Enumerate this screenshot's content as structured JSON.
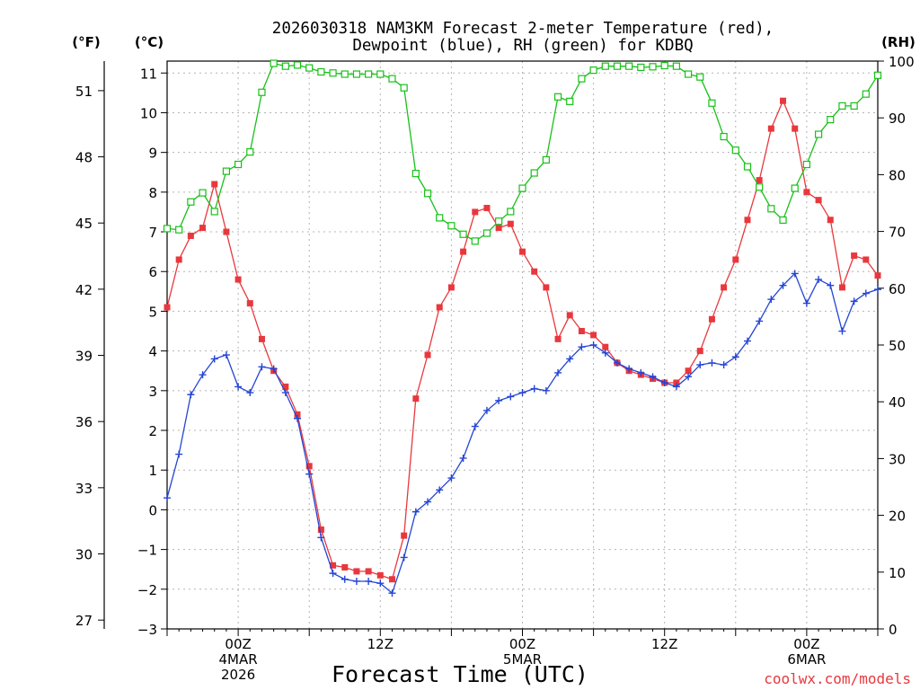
{
  "chart_data": {
    "type": "line",
    "title": [
      "2026030318 NAM3KM Forecast 2-meter Temperature (red),",
      "Dewpoint (blue), RH (green) for KDBQ"
    ],
    "xlabel": "Forecast Time (UTC)",
    "credit": "coolwx.com/models",
    "units": {
      "fahrenheit": "(°F)",
      "celsius": "(°C)",
      "rh": "(RH)"
    },
    "x_range_hours": [
      0,
      60
    ],
    "x_ticks": [
      {
        "hour": 6,
        "lines": [
          "00Z",
          "4MAR",
          "2026"
        ]
      },
      {
        "hour": 18,
        "lines": [
          "12Z"
        ]
      },
      {
        "hour": 30,
        "lines": [
          "00Z",
          "5MAR"
        ]
      },
      {
        "hour": 42,
        "lines": [
          "12Z"
        ]
      },
      {
        "hour": 54,
        "lines": [
          "00Z",
          "6MAR"
        ]
      }
    ],
    "y_left_celsius": {
      "range": [
        -3,
        11.3
      ],
      "ticks": [
        -3,
        -2,
        -1,
        0,
        1,
        2,
        3,
        4,
        5,
        6,
        7,
        8,
        9,
        10,
        11
      ]
    },
    "y_fahrenheit": {
      "ticks": [
        27,
        30,
        33,
        36,
        39,
        42,
        45,
        48,
        51
      ]
    },
    "y_right_rh": {
      "range": [
        0,
        100
      ],
      "ticks": [
        0,
        10,
        20,
        30,
        40,
        50,
        60,
        70,
        80,
        90,
        100
      ]
    },
    "series": [
      {
        "name": "Temperature",
        "unit": "C",
        "color": "#e8383d",
        "marker": "filled-square",
        "values": [
          5.1,
          6.3,
          6.9,
          7.1,
          8.2,
          7.0,
          5.8,
          5.2,
          4.3,
          3.5,
          3.1,
          2.4,
          1.1,
          -0.5,
          -1.4,
          -1.45,
          -1.55,
          -1.55,
          -1.65,
          -1.75,
          -0.65,
          2.8,
          3.9,
          5.1,
          5.6,
          6.5,
          7.5,
          7.6,
          7.1,
          7.2,
          6.5,
          6.0,
          5.6,
          4.3,
          4.9,
          4.5,
          4.4,
          4.1,
          3.7,
          3.5,
          3.4,
          3.3,
          3.2,
          3.2,
          3.5,
          4.0,
          4.8,
          5.6,
          6.3,
          7.3,
          8.3,
          9.6,
          10.3,
          9.6,
          8.0,
          7.8,
          7.3,
          5.6,
          6.4,
          6.3,
          5.9
        ]
      },
      {
        "name": "Dewpoint",
        "unit": "C",
        "color": "#2545d4",
        "marker": "plus",
        "values": [
          0.3,
          1.4,
          2.9,
          3.4,
          3.8,
          3.9,
          3.1,
          2.95,
          3.6,
          3.55,
          2.95,
          2.3,
          0.9,
          -0.7,
          -1.6,
          -1.75,
          -1.8,
          -1.8,
          -1.85,
          -2.1,
          -1.2,
          -0.05,
          0.2,
          0.5,
          0.8,
          1.3,
          2.1,
          2.5,
          2.75,
          2.85,
          2.95,
          3.05,
          3.0,
          3.45,
          3.8,
          4.1,
          4.15,
          3.95,
          3.7,
          3.55,
          3.45,
          3.35,
          3.2,
          3.1,
          3.35,
          3.65,
          3.7,
          3.65,
          3.85,
          4.25,
          4.75,
          5.3,
          5.65,
          5.95,
          5.2,
          5.8,
          5.65,
          4.5,
          5.25,
          5.45,
          5.55
        ]
      },
      {
        "name": "Relative Humidity",
        "unit": "%",
        "color": "#17c117",
        "marker": "open-square",
        "values": [
          70.5,
          70.3,
          75.2,
          76.8,
          73.5,
          80.6,
          81.8,
          84.0,
          94.5,
          99.6,
          99.1,
          99.3,
          98.8,
          98.1,
          97.9,
          97.7,
          97.7,
          97.7,
          97.7,
          96.9,
          95.3,
          80.2,
          76.7,
          72.4,
          71.0,
          69.5,
          68.3,
          69.7,
          71.8,
          73.5,
          77.6,
          80.3,
          82.6,
          93.7,
          92.9,
          96.9,
          98.4,
          99.1,
          99.1,
          99.1,
          98.9,
          99.0,
          99.2,
          99.1,
          97.7,
          97.2,
          92.6,
          86.7,
          84.3,
          81.4,
          77.8,
          74.0,
          72.0,
          77.6,
          81.8,
          87.1,
          89.7,
          92.1,
          92.1,
          94.2,
          97.5
        ]
      }
    ]
  }
}
